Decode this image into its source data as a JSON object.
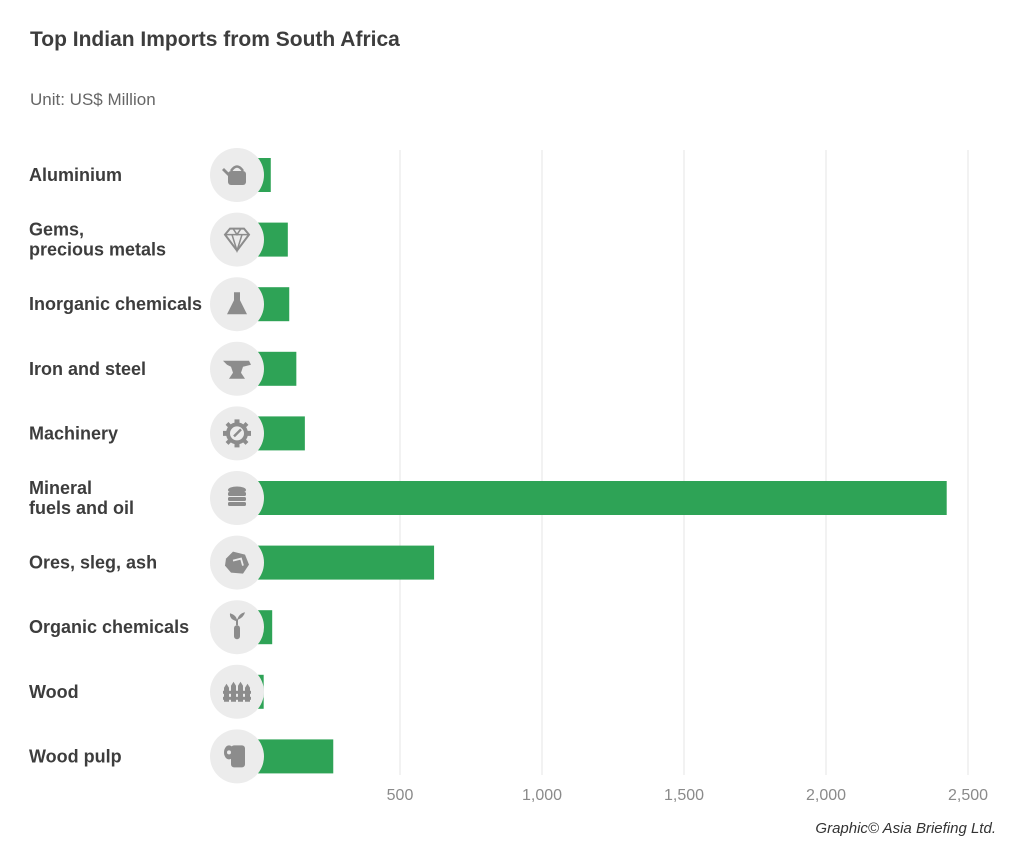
{
  "header": {
    "title": "Top Indian Imports from South Africa",
    "subtitle": "Unit: US$ Million"
  },
  "footer": {
    "credit": "Graphic© Asia Briefing Ltd."
  },
  "colors": {
    "bar": "#2ea356",
    "grid": "#e6e6e6",
    "icon_bg": "#ececec",
    "icon": "#8c8c8c"
  },
  "chart_data": {
    "type": "bar",
    "orientation": "horizontal",
    "title": "Top Indian Imports from South Africa",
    "subtitle": "Unit: US$ Million",
    "categories": [
      [
        "Aluminium"
      ],
      [
        "Gems,",
        "precious metals"
      ],
      [
        "Inorganic chemicals"
      ],
      [
        "Iron and steel"
      ],
      [
        "Machinery"
      ],
      [
        "Mineral",
        "fuels and oil"
      ],
      [
        "Ores, sleg, ash"
      ],
      [
        "Organic chemicals"
      ],
      [
        "Wood"
      ],
      [
        "Wood pulp"
      ]
    ],
    "icons": [
      "kettle-icon",
      "diamond-icon",
      "flask-icon",
      "anvil-icon",
      "gear-icon",
      "coin-stack-icon",
      "ore-rock-icon",
      "plant-tube-icon",
      "fence-icon",
      "paper-roll-icon"
    ],
    "values": [
      45,
      105,
      110,
      135,
      165,
      2425,
      620,
      50,
      20,
      265
    ],
    "xlim": [
      0,
      2500
    ],
    "xticks": [
      500,
      1000,
      1500,
      2000,
      2500
    ],
    "xtick_labels": [
      "500",
      "1,000",
      "1,500",
      "2,000",
      "2,500"
    ],
    "grid": "vertical",
    "legend": "none"
  }
}
